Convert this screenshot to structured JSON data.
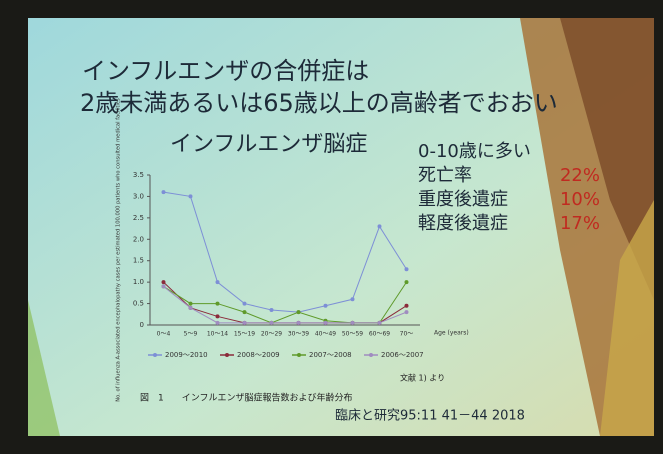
{
  "slide": {
    "title_lines": [
      "インフルエンザの合併症は",
      "2歳未満あるいは65歳以上の高齢者でおおい"
    ],
    "notes": [
      {
        "text": "0-10歳に多い"
      },
      {
        "text": "死亡率",
        "pct": "22%"
      },
      {
        "text": "重度後遺症",
        "pct": "10%"
      },
      {
        "text": "軽度後遺症",
        "pct": "17%"
      }
    ],
    "figure_caption": "図　1　　インフルエンザ脳症報告数および年齢分布",
    "source_note": "文献 1) より",
    "citation": "臨床と研究95:11 41－44 2018"
  },
  "chart_data": {
    "type": "line",
    "title": "インフルエンザ脳症",
    "y_label": "No. of influenza A-associated encephalopathy cases per estimated 100,000 patients who consulted medical facilities",
    "x_label": "Age (years)",
    "categories": [
      "0～4",
      "5～9",
      "10～14",
      "15～19",
      "20～29",
      "30～39",
      "40～49",
      "50～59",
      "60～69",
      "70～"
    ],
    "series": [
      {
        "name": "2009～2010",
        "color": "#7d8fd6",
        "values": [
          3.1,
          3.0,
          1.0,
          0.5,
          0.35,
          0.3,
          0.45,
          0.6,
          2.3,
          1.3
        ]
      },
      {
        "name": "2008～2009",
        "color": "#8b2a3a",
        "values": [
          1.0,
          0.4,
          0.2,
          0.05,
          0.05,
          0.05,
          0.05,
          0.05,
          0.05,
          0.45
        ]
      },
      {
        "name": "2007～2008",
        "color": "#5f9a2a",
        "values": [
          0.9,
          0.5,
          0.5,
          0.3,
          0.05,
          0.3,
          0.1,
          0.05,
          0.05,
          1.0
        ]
      },
      {
        "name": "2006～2007",
        "color": "#a08cc0",
        "values": [
          0.9,
          0.4,
          0.05,
          0.05,
          0.05,
          0.05,
          0.05,
          0.05,
          0.05,
          0.3
        ]
      }
    ],
    "ylim": [
      0,
      3.5
    ],
    "yticks": [
      0,
      0.5,
      {
        "value": 1,
        "label": "1.0"
      },
      1.5,
      {
        "value": 2,
        "label": "2.0"
      },
      2.5,
      {
        "value": 3,
        "label": "3.0"
      },
      3.5
    ]
  }
}
